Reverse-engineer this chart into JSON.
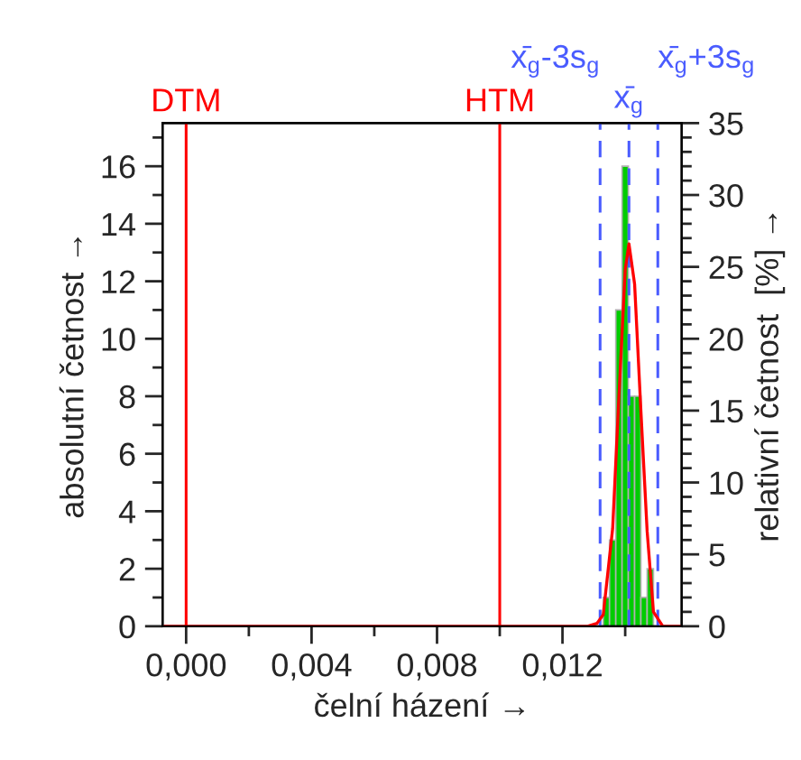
{
  "chart_data": {
    "type": "histogram",
    "xlabel": "čelní házení →",
    "ylabel": "absolutní četnost →",
    "y2label": "relativní četnost  [%] →",
    "bins": [
      0.0133,
      0.0135,
      0.0137,
      0.0139,
      0.0141,
      0.0143,
      0.0145,
      0.0147,
      0.0149
    ],
    "series": [
      {
        "color": "#00cc00",
        "values": [
          1,
          3,
          11,
          16,
          8,
          8,
          1,
          2
        ]
      },
      {
        "type": "line",
        "color": "#ff0000",
        "x": [
          -0.0007,
          0.0128,
          0.0131,
          0.0133,
          0.0136,
          0.0138,
          0.014,
          0.01412,
          0.0143,
          0.0145,
          0.0147,
          0.0149,
          0.0152,
          0.0158
        ],
        "values": [
          0,
          0,
          0.1,
          0.4,
          3.4,
          8.0,
          12.4,
          13.3,
          11.9,
          7.5,
          3.3,
          0.5,
          0,
          0
        ]
      }
    ],
    "xlim": [
      -0.00075,
      0.0158
    ],
    "xticks": [
      {
        "value": 0,
        "label": "0,000"
      },
      {
        "value": 0.002,
        "label": null
      },
      {
        "value": 0.004,
        "label": "0,004"
      },
      {
        "value": 0.006,
        "label": null
      },
      {
        "value": 0.008,
        "label": "0,008"
      },
      {
        "value": 0.01,
        "label": null
      },
      {
        "value": 0.012,
        "label": "0,012"
      },
      {
        "value": 0.014,
        "label": null
      }
    ],
    "ylim": [
      0,
      17.5
    ],
    "yticks": [
      0,
      {
        "value": 1,
        "label": null
      },
      2,
      {
        "value": 3,
        "label": null
      },
      4,
      {
        "value": 5,
        "label": null
      },
      6,
      {
        "value": 7,
        "label": null
      },
      8,
      {
        "value": 9,
        "label": null
      },
      10,
      {
        "value": 11,
        "label": null
      },
      12,
      {
        "value": 13,
        "label": null
      },
      14,
      {
        "value": 15,
        "label": null
      },
      16,
      {
        "value": 17,
        "label": null
      }
    ],
    "y2lim": [
      0,
      35
    ],
    "y2ticks": [
      0,
      5,
      10,
      15,
      20,
      25,
      30,
      35
    ],
    "ref_lines": [
      {
        "axis": "x",
        "value": 0,
        "label": "DTM",
        "color": "#ff0000",
        "line_style": "solid"
      },
      {
        "axis": "x",
        "value": 0.01,
        "label": "HTM",
        "color": "#ff0000",
        "line_style": "solid"
      },
      {
        "axis": "x",
        "value": 0.0132,
        "label": "x̄$_{g}$-3s$_{g}$",
        "color": "#4a5cff",
        "line_style": "dashed"
      },
      {
        "axis": "x",
        "value": 0.01412,
        "label": "x̄$_{g}$",
        "color": "#4a5cff",
        "line_style": "dashed"
      },
      {
        "axis": "x",
        "value": 0.01504,
        "label": "x̄$_{g}$+3s$_{g}$",
        "color": "#4a5cff",
        "line_style": "dashed"
      }
    ],
    "grid": false
  }
}
